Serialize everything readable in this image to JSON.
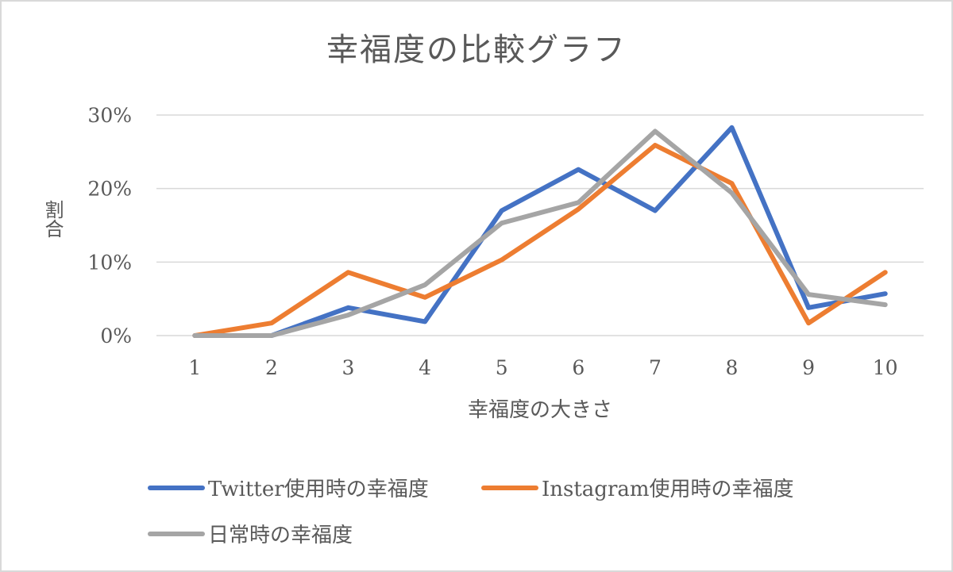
{
  "chart_data": {
    "type": "line",
    "title": "幸福度の比較グラフ",
    "xlabel": "幸福度の大きさ",
    "ylabel": "割合",
    "categories": [
      "1",
      "2",
      "3",
      "4",
      "5",
      "6",
      "7",
      "8",
      "9",
      "10"
    ],
    "ylim": [
      0,
      30
    ],
    "yticks": [
      0,
      10,
      20,
      30
    ],
    "ytick_labels": [
      "0%",
      "10%",
      "20%",
      "30%"
    ],
    "grid": true,
    "legend_position": "bottom",
    "series": [
      {
        "name": "Twitter使用時の幸福度",
        "color": "#4472c4",
        "values": [
          0,
          0,
          3.8,
          1.9,
          17.0,
          22.6,
          17.0,
          28.3,
          3.8,
          5.7
        ]
      },
      {
        "name": "Instagram使用時の幸福度",
        "color": "#ed7d31",
        "values": [
          0,
          1.7,
          8.6,
          5.2,
          10.3,
          17.2,
          25.9,
          20.7,
          1.7,
          8.6
        ]
      },
      {
        "name": "日常時の幸福度",
        "color": "#a5a5a5",
        "values": [
          0,
          0,
          2.8,
          6.9,
          15.3,
          18.1,
          27.8,
          19.4,
          5.6,
          4.2
        ]
      }
    ]
  }
}
